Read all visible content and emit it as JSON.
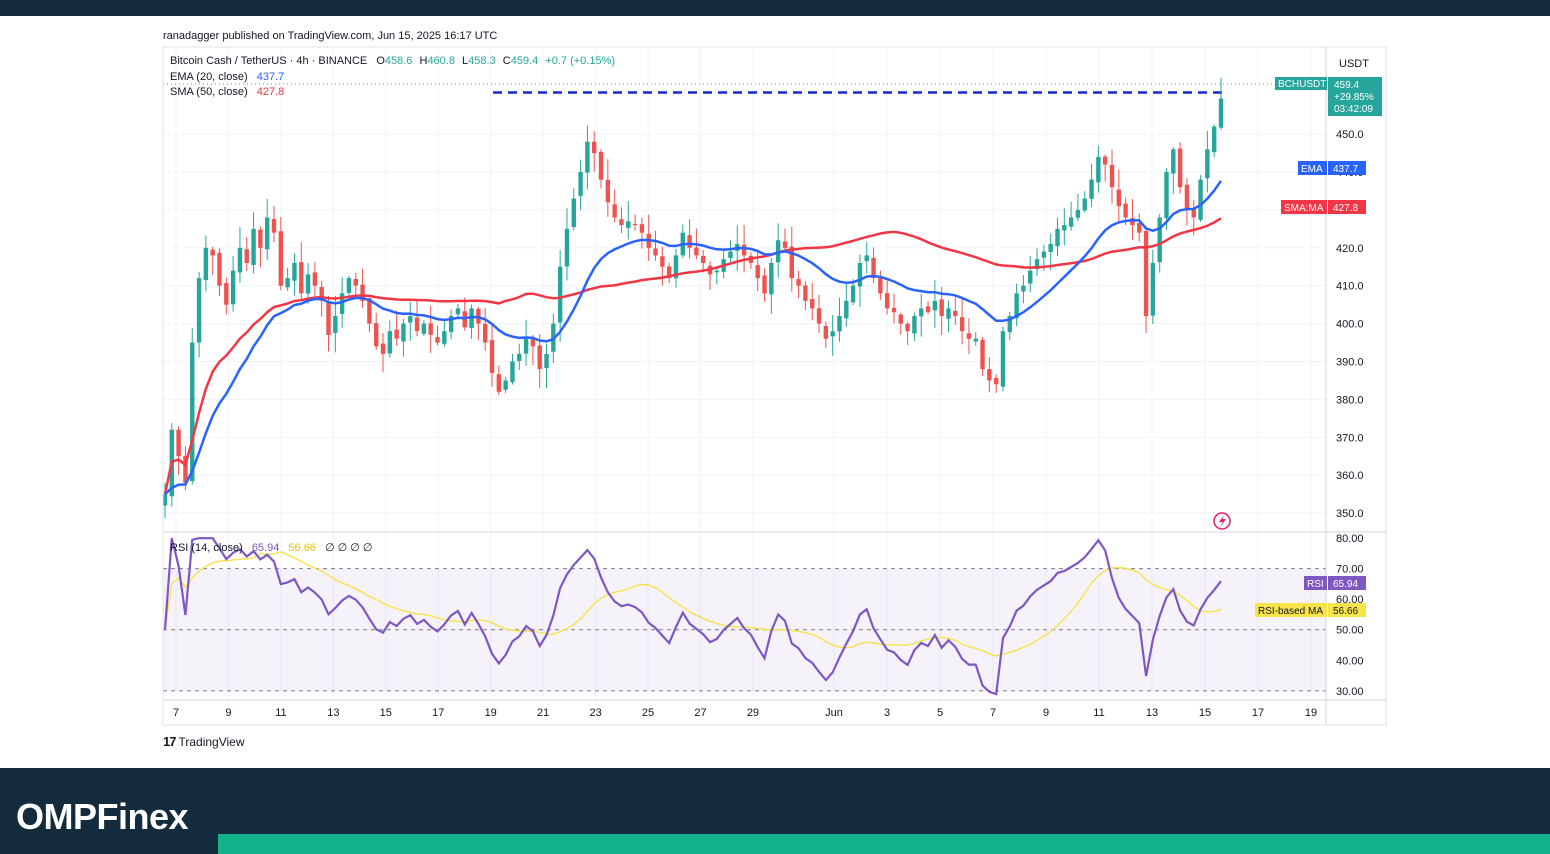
{
  "publisher": "ranadagger published on TradingView.com, Jun 15, 2025 16:17 UTC",
  "brand": {
    "name": "OMPFinex",
    "colors": {
      "footer": "#142b3d",
      "accent": "#12b38a"
    }
  },
  "tradingview": "TradingView",
  "legend": {
    "symbol": "Bitcoin Cash / TetherUS · 4h · BINANCE",
    "ohlc": [
      {
        "k": "O",
        "v": "458.6"
      },
      {
        "k": "H",
        "v": "460.8"
      },
      {
        "k": "L",
        "v": "458.3"
      },
      {
        "k": "C",
        "v": "459.4"
      }
    ],
    "change": "+0.7 (+0.15%)",
    "ema_label": "EMA (20, close)",
    "ema_value": "437.7",
    "sma_label": "SMA (50, close)",
    "sma_value": "427.8",
    "rsi_label": "RSI (14, close)",
    "rsi_value": "65.94",
    "rsi_ma_value": "56.66",
    "rsi_extra": "∅ ∅ ∅ ∅"
  },
  "price_axis": {
    "currency": "USDT"
  },
  "badges": {
    "symbol": "BCHUSDT",
    "price": "459.4",
    "change_pct": "+29.85%",
    "countdown": "03:42:09",
    "ema": {
      "label": "EMA",
      "value": "437.7"
    },
    "sma": {
      "label": "SMA:MA",
      "value": "427.8"
    },
    "rsi": {
      "label": "RSI",
      "value": "65.94"
    },
    "rsi_ma": {
      "label": "RSI-based MA",
      "value": "56.66"
    }
  },
  "colors": {
    "up": "#26a69a",
    "down": "#ef5350",
    "ema": "#2962ff",
    "sma": "#f23645",
    "rsi": "#7e57c2",
    "rsi_ma": "#f7e34a",
    "level": "#1428d8"
  },
  "chart_data": [
    {
      "type": "candlestick",
      "title": "Bitcoin Cash / TetherUS · 4h · BINANCE",
      "ylim": [
        345,
        473
      ],
      "yticks": [
        350,
        360,
        370,
        380,
        390,
        400,
        410,
        420,
        430,
        440,
        450
      ],
      "x_ticks": [
        "7",
        "9",
        "11",
        "13",
        "15",
        "17",
        "19",
        "21",
        "23",
        "25",
        "27",
        "29",
        "Jun",
        "3",
        "5",
        "7",
        "9",
        "11",
        "13",
        "15",
        "17",
        "19"
      ],
      "resistance_level": 461,
      "close": [
        355,
        372,
        365,
        358,
        395,
        412,
        420,
        418,
        410,
        405,
        414,
        420,
        416,
        425,
        420,
        428,
        424,
        410,
        412,
        416,
        408,
        413,
        410,
        406,
        397,
        402,
        408,
        412,
        410,
        406,
        400,
        394,
        392,
        398,
        396,
        400,
        402,
        398,
        400,
        397,
        395,
        398,
        402,
        404,
        399,
        404,
        400,
        395,
        387,
        382,
        385,
        390,
        392,
        396,
        394,
        388,
        392,
        400,
        415,
        425,
        433,
        440,
        448,
        445,
        438,
        432,
        428,
        426,
        427,
        426,
        424,
        420,
        418,
        415,
        412,
        418,
        424,
        420,
        418,
        416,
        413,
        414,
        417,
        419,
        421,
        418,
        416,
        412,
        408,
        416,
        422,
        420,
        412,
        410,
        406,
        404,
        400,
        396,
        398,
        402,
        406,
        410,
        416,
        418,
        412,
        408,
        404,
        403,
        400,
        398,
        402,
        404,
        403,
        406,
        402,
        404,
        402,
        398,
        396,
        396,
        388,
        385,
        384,
        398,
        402,
        408,
        410,
        414,
        417,
        419,
        421,
        425,
        426,
        428,
        430,
        433,
        438,
        444,
        442,
        436,
        431,
        428,
        426,
        424,
        402,
        416,
        428,
        440,
        446,
        436,
        430,
        428,
        438,
        446,
        452,
        459.4
      ],
      "ema20_last": 437.7,
      "sma50_last": 427.8
    },
    {
      "type": "line",
      "title": "RSI (14, close)",
      "ylim": [
        27,
        82
      ],
      "yticks": [
        30,
        40,
        50,
        60,
        70,
        80
      ],
      "bands": [
        30,
        50,
        70
      ],
      "series": [
        {
          "name": "RSI",
          "last": 65.94
        },
        {
          "name": "RSI-based MA",
          "last": 56.66
        }
      ]
    }
  ]
}
